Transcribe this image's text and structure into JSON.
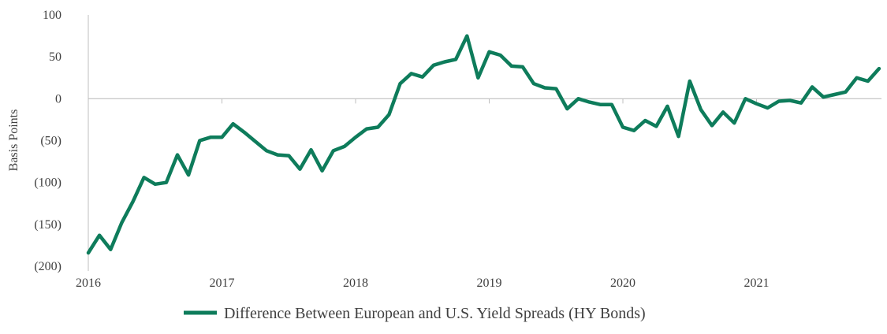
{
  "chart_data": {
    "type": "line",
    "title": "",
    "xlabel": "",
    "ylabel": "Basis Points",
    "ylim": [
      -200,
      100
    ],
    "y_ticks": [
      100,
      50,
      0,
      -50,
      -100,
      -150,
      -200
    ],
    "y_tick_labels": [
      "100",
      "50",
      "0",
      "(50)",
      "(100)",
      "(150)",
      "(200)"
    ],
    "x_ticks": [
      2016,
      2017,
      2018,
      2019,
      2020,
      2021
    ],
    "x_tick_labels": [
      "2016",
      "2017",
      "2018",
      "2019",
      "2020",
      "2021"
    ],
    "xlim": [
      "2016-01",
      "2021-12"
    ],
    "grid": false,
    "legend_position": "bottom",
    "series": [
      {
        "name": "Difference Between European and U.S. Yield Spreads (HY Bonds)",
        "color": "#0e7c5b",
        "x": [
          "2016-01",
          "2016-02",
          "2016-03",
          "2016-04",
          "2016-05",
          "2016-06",
          "2016-07",
          "2016-08",
          "2016-09",
          "2016-10",
          "2016-11",
          "2016-12",
          "2017-01",
          "2017-02",
          "2017-03",
          "2017-04",
          "2017-05",
          "2017-06",
          "2017-07",
          "2017-08",
          "2017-09",
          "2017-10",
          "2017-11",
          "2017-12",
          "2018-01",
          "2018-02",
          "2018-03",
          "2018-04",
          "2018-05",
          "2018-06",
          "2018-07",
          "2018-08",
          "2018-09",
          "2018-10",
          "2018-11",
          "2018-12",
          "2019-01",
          "2019-02",
          "2019-03",
          "2019-04",
          "2019-05",
          "2019-06",
          "2019-07",
          "2019-08",
          "2019-09",
          "2019-10",
          "2019-11",
          "2019-12",
          "2020-01",
          "2020-02",
          "2020-03",
          "2020-04",
          "2020-05",
          "2020-06",
          "2020-07",
          "2020-08",
          "2020-09",
          "2020-10",
          "2020-11",
          "2020-12",
          "2021-01",
          "2021-02",
          "2021-03",
          "2021-04",
          "2021-05",
          "2021-06",
          "2021-07",
          "2021-08",
          "2021-09",
          "2021-10",
          "2021-11",
          "2021-12"
        ],
        "values": [
          -184,
          -163,
          -180,
          -148,
          -123,
          -94,
          -102,
          -100,
          -67,
          -91,
          -50,
          -46,
          -46,
          -30,
          -40,
          -51,
          -62,
          -67,
          -68,
          -84,
          -61,
          -86,
          -62,
          -57,
          -46,
          -36,
          -34,
          -19,
          18,
          30,
          26,
          40,
          44,
          47,
          75,
          25,
          56,
          52,
          39,
          38,
          18,
          13,
          12,
          -12,
          0,
          -4,
          -7,
          -7,
          -34,
          -38,
          -26,
          -33,
          -9,
          -45,
          21,
          -13,
          -32,
          -16,
          -29,
          0,
          -6,
          -11,
          -3,
          -2,
          -5,
          14,
          2,
          5,
          8,
          25,
          21,
          36
        ]
      }
    ]
  }
}
